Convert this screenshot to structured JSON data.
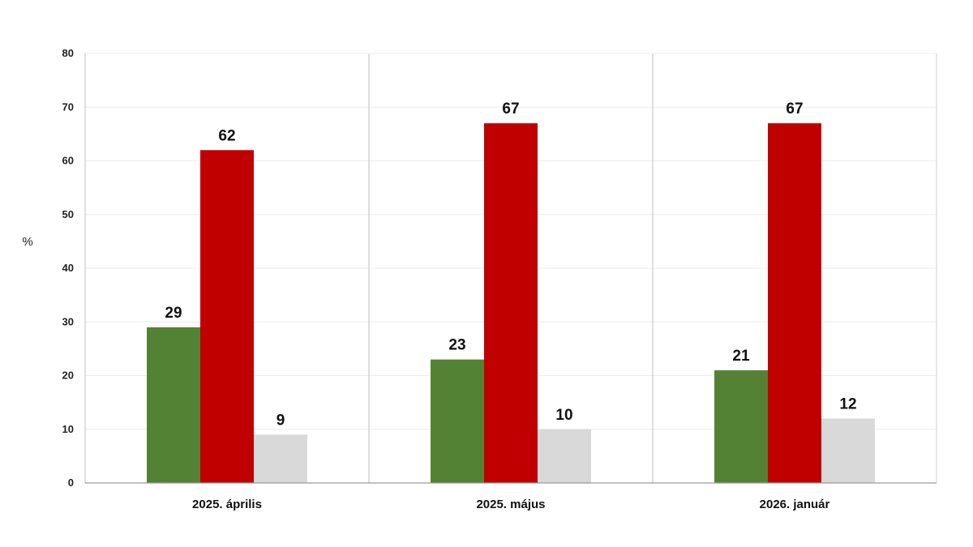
{
  "chart_data": {
    "type": "bar",
    "title": "",
    "xlabel": "",
    "ylabel": "%",
    "ylim": [
      0,
      80
    ],
    "yticks": [
      0,
      10,
      20,
      30,
      40,
      50,
      60,
      70,
      80
    ],
    "grid": true,
    "legend": "none",
    "categories": [
      "2025. április",
      "2025. május",
      "2026. január"
    ],
    "series": [
      {
        "values": [
          29,
          23,
          21
        ],
        "color": "#548235"
      },
      {
        "values": [
          62,
          67,
          67
        ],
        "color": "#C00000"
      },
      {
        "values": [
          9,
          10,
          12
        ],
        "color": "#D9D9D9"
      }
    ]
  }
}
